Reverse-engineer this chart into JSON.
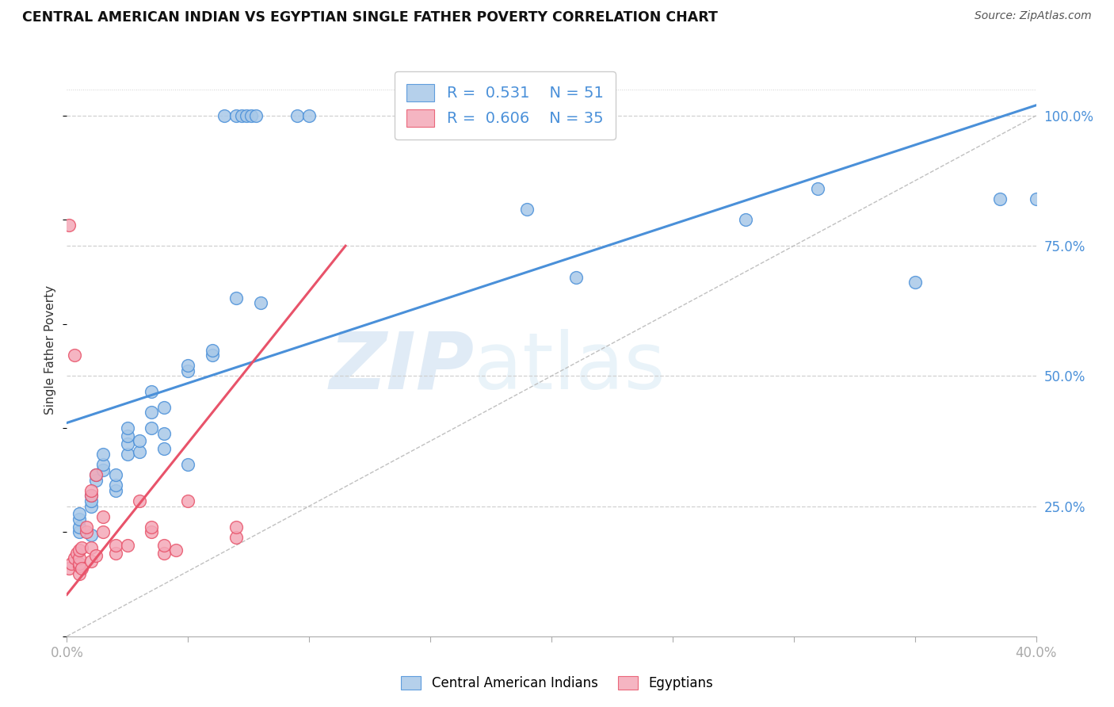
{
  "title": "CENTRAL AMERICAN INDIAN VS EGYPTIAN SINGLE FATHER POVERTY CORRELATION CHART",
  "source": "Source: ZipAtlas.com",
  "ylabel": "Single Father Poverty",
  "watermark_zip": "ZIP",
  "watermark_atlas": "atlas",
  "legend_blue": {
    "R": "0.531",
    "N": "51",
    "label": "Central American Indians"
  },
  "legend_pink": {
    "R": "0.606",
    "N": "35",
    "label": "Egyptians"
  },
  "blue_color": "#a8c8e8",
  "pink_color": "#f4a8b8",
  "blue_line_color": "#4a90d9",
  "pink_line_color": "#e8536a",
  "diag_line_color": "#c0c0c0",
  "grid_color": "#d0d0d0",
  "blue_scatter": [
    [
      0.5,
      20.0
    ],
    [
      0.5,
      21.0
    ],
    [
      0.5,
      22.5
    ],
    [
      0.5,
      23.5
    ],
    [
      1.0,
      19.5
    ],
    [
      1.0,
      25.0
    ],
    [
      1.0,
      26.0
    ],
    [
      1.0,
      27.0
    ],
    [
      1.2,
      30.0
    ],
    [
      1.2,
      31.0
    ],
    [
      1.5,
      32.0
    ],
    [
      1.5,
      33.0
    ],
    [
      1.5,
      35.0
    ],
    [
      2.0,
      28.0
    ],
    [
      2.0,
      29.0
    ],
    [
      2.0,
      31.0
    ],
    [
      2.5,
      35.0
    ],
    [
      2.5,
      37.0
    ],
    [
      2.5,
      38.5
    ],
    [
      2.5,
      40.0
    ],
    [
      3.0,
      35.5
    ],
    [
      3.0,
      37.5
    ],
    [
      3.5,
      40.0
    ],
    [
      3.5,
      43.0
    ],
    [
      3.5,
      47.0
    ],
    [
      4.0,
      36.0
    ],
    [
      4.0,
      39.0
    ],
    [
      4.0,
      44.0
    ],
    [
      5.0,
      33.0
    ],
    [
      5.0,
      51.0
    ],
    [
      5.0,
      52.0
    ],
    [
      6.0,
      54.0
    ],
    [
      6.0,
      55.0
    ],
    [
      7.0,
      65.0
    ],
    [
      8.0,
      64.0
    ],
    [
      6.5,
      100.0
    ],
    [
      7.0,
      100.0
    ],
    [
      7.2,
      100.0
    ],
    [
      7.4,
      100.0
    ],
    [
      7.6,
      100.0
    ],
    [
      7.8,
      100.0
    ],
    [
      9.5,
      100.0
    ],
    [
      10.0,
      100.0
    ],
    [
      14.0,
      100.0
    ],
    [
      19.0,
      82.0
    ],
    [
      21.0,
      69.0
    ],
    [
      28.0,
      80.0
    ],
    [
      31.0,
      86.0
    ],
    [
      35.0,
      68.0
    ],
    [
      38.5,
      84.0
    ],
    [
      40.0,
      84.0
    ]
  ],
  "pink_scatter": [
    [
      0.1,
      13.0
    ],
    [
      0.2,
      14.0
    ],
    [
      0.3,
      15.0
    ],
    [
      0.4,
      16.0
    ],
    [
      0.5,
      12.0
    ],
    [
      0.5,
      13.5
    ],
    [
      0.5,
      14.0
    ],
    [
      0.5,
      15.0
    ],
    [
      0.5,
      16.5
    ],
    [
      0.6,
      13.0
    ],
    [
      0.6,
      17.0
    ],
    [
      0.8,
      20.0
    ],
    [
      0.8,
      21.0
    ],
    [
      1.0,
      14.5
    ],
    [
      1.0,
      17.0
    ],
    [
      1.0,
      27.0
    ],
    [
      1.0,
      28.0
    ],
    [
      1.2,
      15.5
    ],
    [
      1.2,
      31.0
    ],
    [
      1.5,
      20.0
    ],
    [
      1.5,
      23.0
    ],
    [
      2.0,
      16.0
    ],
    [
      2.0,
      17.5
    ],
    [
      2.5,
      17.5
    ],
    [
      3.0,
      26.0
    ],
    [
      3.5,
      20.0
    ],
    [
      3.5,
      21.0
    ],
    [
      4.0,
      16.0
    ],
    [
      4.0,
      17.5
    ],
    [
      4.5,
      16.5
    ],
    [
      5.0,
      26.0
    ],
    [
      7.0,
      19.0
    ],
    [
      7.0,
      21.0
    ],
    [
      0.1,
      79.0
    ],
    [
      0.3,
      54.0
    ]
  ],
  "blue_line": {
    "x0": 0.0,
    "y0": 41.0,
    "x1": 40.0,
    "y1": 102.0
  },
  "pink_line": {
    "x0": 0.0,
    "y0": 8.0,
    "x1": 11.5,
    "y1": 75.0
  },
  "diag_line": {
    "x0": 0.0,
    "y0": 0.0,
    "x1": 40.0,
    "y1": 100.0
  },
  "xlim": [
    0,
    40
  ],
  "ylim": [
    0,
    110
  ],
  "xticks": [
    0,
    5,
    10,
    15,
    20,
    25,
    30,
    35,
    40
  ],
  "xtick_labels": [
    "0.0%",
    "",
    "",
    "",
    "",
    "",
    "",
    "",
    "40.0%"
  ],
  "yticks": [
    25,
    50,
    75,
    100
  ],
  "ytick_labels": [
    "25.0%",
    "50.0%",
    "75.0%",
    "100.0%"
  ]
}
